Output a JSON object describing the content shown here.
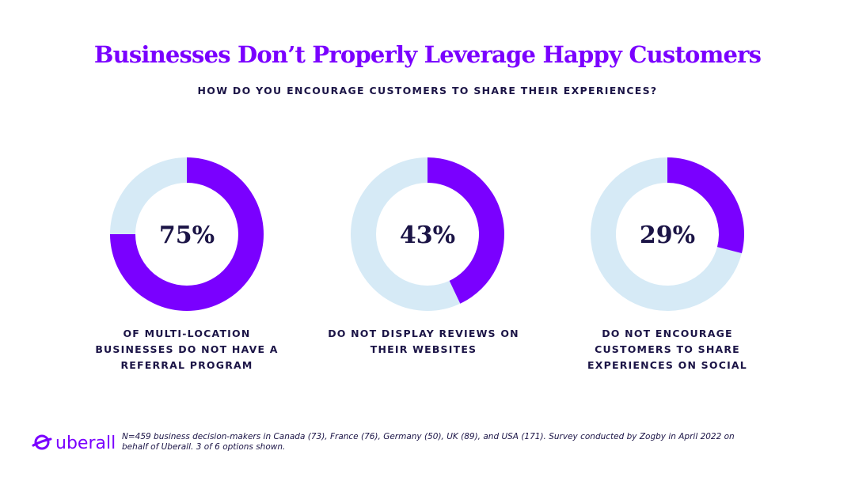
{
  "title": "Businesses Don’t Properly Leverage Happy Customers",
  "subtitle": "HOW DO YOU ENCOURAGE CUSTOMERS TO SHARE THEIR EXPERIENCES?",
  "colors": {
    "accent": "#7a00ff",
    "remainder": "#d6eaf6",
    "text": "#1b1446"
  },
  "chart_data": [
    {
      "type": "pie",
      "variant": "donut",
      "value": 75,
      "label": "75%",
      "caption": "OF MULTI-LOCATION BUSINESSES DO NOT HAVE A REFERRAL PROGRAM"
    },
    {
      "type": "pie",
      "variant": "donut",
      "value": 43,
      "label": "43%",
      "caption": "DO NOT DISPLAY REVIEWS ON THEIR WEBSITES"
    },
    {
      "type": "pie",
      "variant": "donut",
      "value": 29,
      "label": "29%",
      "caption": "DO NOT ENCOURAGE CUSTOMERS TO SHARE EXPERIENCES ON SOCIAL"
    }
  ],
  "footer": {
    "logo_text": "uberall",
    "note": "N=459 business decision-makers in Canada (73), France (76), Germany (50), UK (89), and USA (171). Survey conducted by Zogby in April 2022 on behalf of Uberall. 3 of 6 options shown."
  }
}
